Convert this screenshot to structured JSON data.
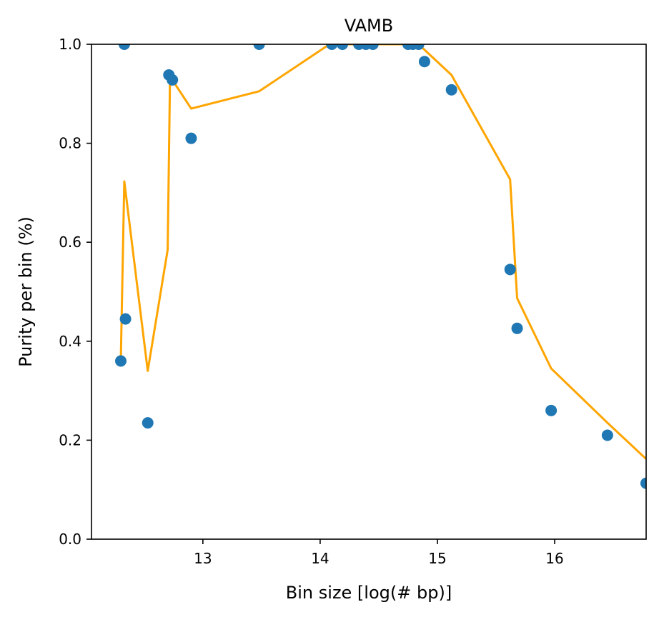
{
  "chart_data": {
    "type": "scatter",
    "title": "VAMB",
    "xlabel": "Bin size [log(# bp)]",
    "ylabel": "Purity per bin (%)",
    "xlim": [
      12.05,
      16.78
    ],
    "ylim": [
      0.0,
      1.0
    ],
    "xticks": [
      13,
      14,
      15,
      16
    ],
    "yticks": [
      0.0,
      0.2,
      0.4,
      0.6,
      0.8,
      1.0
    ],
    "grid": false,
    "series": [
      {
        "kind": "scatter",
        "color": "#1f77b4",
        "points": [
          {
            "x": 12.3,
            "y": 0.36
          },
          {
            "x": 12.33,
            "y": 1.0
          },
          {
            "x": 12.34,
            "y": 0.445
          },
          {
            "x": 12.53,
            "y": 0.235
          },
          {
            "x": 12.71,
            "y": 0.938
          },
          {
            "x": 12.74,
            "y": 0.928
          },
          {
            "x": 12.9,
            "y": 0.81
          },
          {
            "x": 13.48,
            "y": 1.0
          },
          {
            "x": 14.1,
            "y": 1.0
          },
          {
            "x": 14.19,
            "y": 1.0
          },
          {
            "x": 14.33,
            "y": 1.0
          },
          {
            "x": 14.39,
            "y": 1.0
          },
          {
            "x": 14.45,
            "y": 1.0
          },
          {
            "x": 14.75,
            "y": 1.0
          },
          {
            "x": 14.79,
            "y": 1.0
          },
          {
            "x": 14.84,
            "y": 1.0
          },
          {
            "x": 14.89,
            "y": 0.965
          },
          {
            "x": 15.12,
            "y": 0.908
          },
          {
            "x": 15.62,
            "y": 0.545
          },
          {
            "x": 15.68,
            "y": 0.426
          },
          {
            "x": 15.97,
            "y": 0.26
          },
          {
            "x": 16.45,
            "y": 0.21
          },
          {
            "x": 16.78,
            "y": 0.113
          }
        ]
      },
      {
        "kind": "line",
        "color": "#ffa500",
        "x": [
          12.3,
          12.33,
          12.53,
          12.7,
          12.72,
          12.9,
          13.48,
          14.08,
          14.84,
          15.12,
          15.62,
          15.68,
          15.97,
          16.45,
          16.78
        ],
        "y": [
          0.36,
          0.723,
          0.34,
          0.585,
          0.935,
          0.87,
          0.905,
          1.0,
          1.0,
          0.938,
          0.727,
          0.487,
          0.345,
          0.235,
          0.162
        ]
      }
    ]
  }
}
